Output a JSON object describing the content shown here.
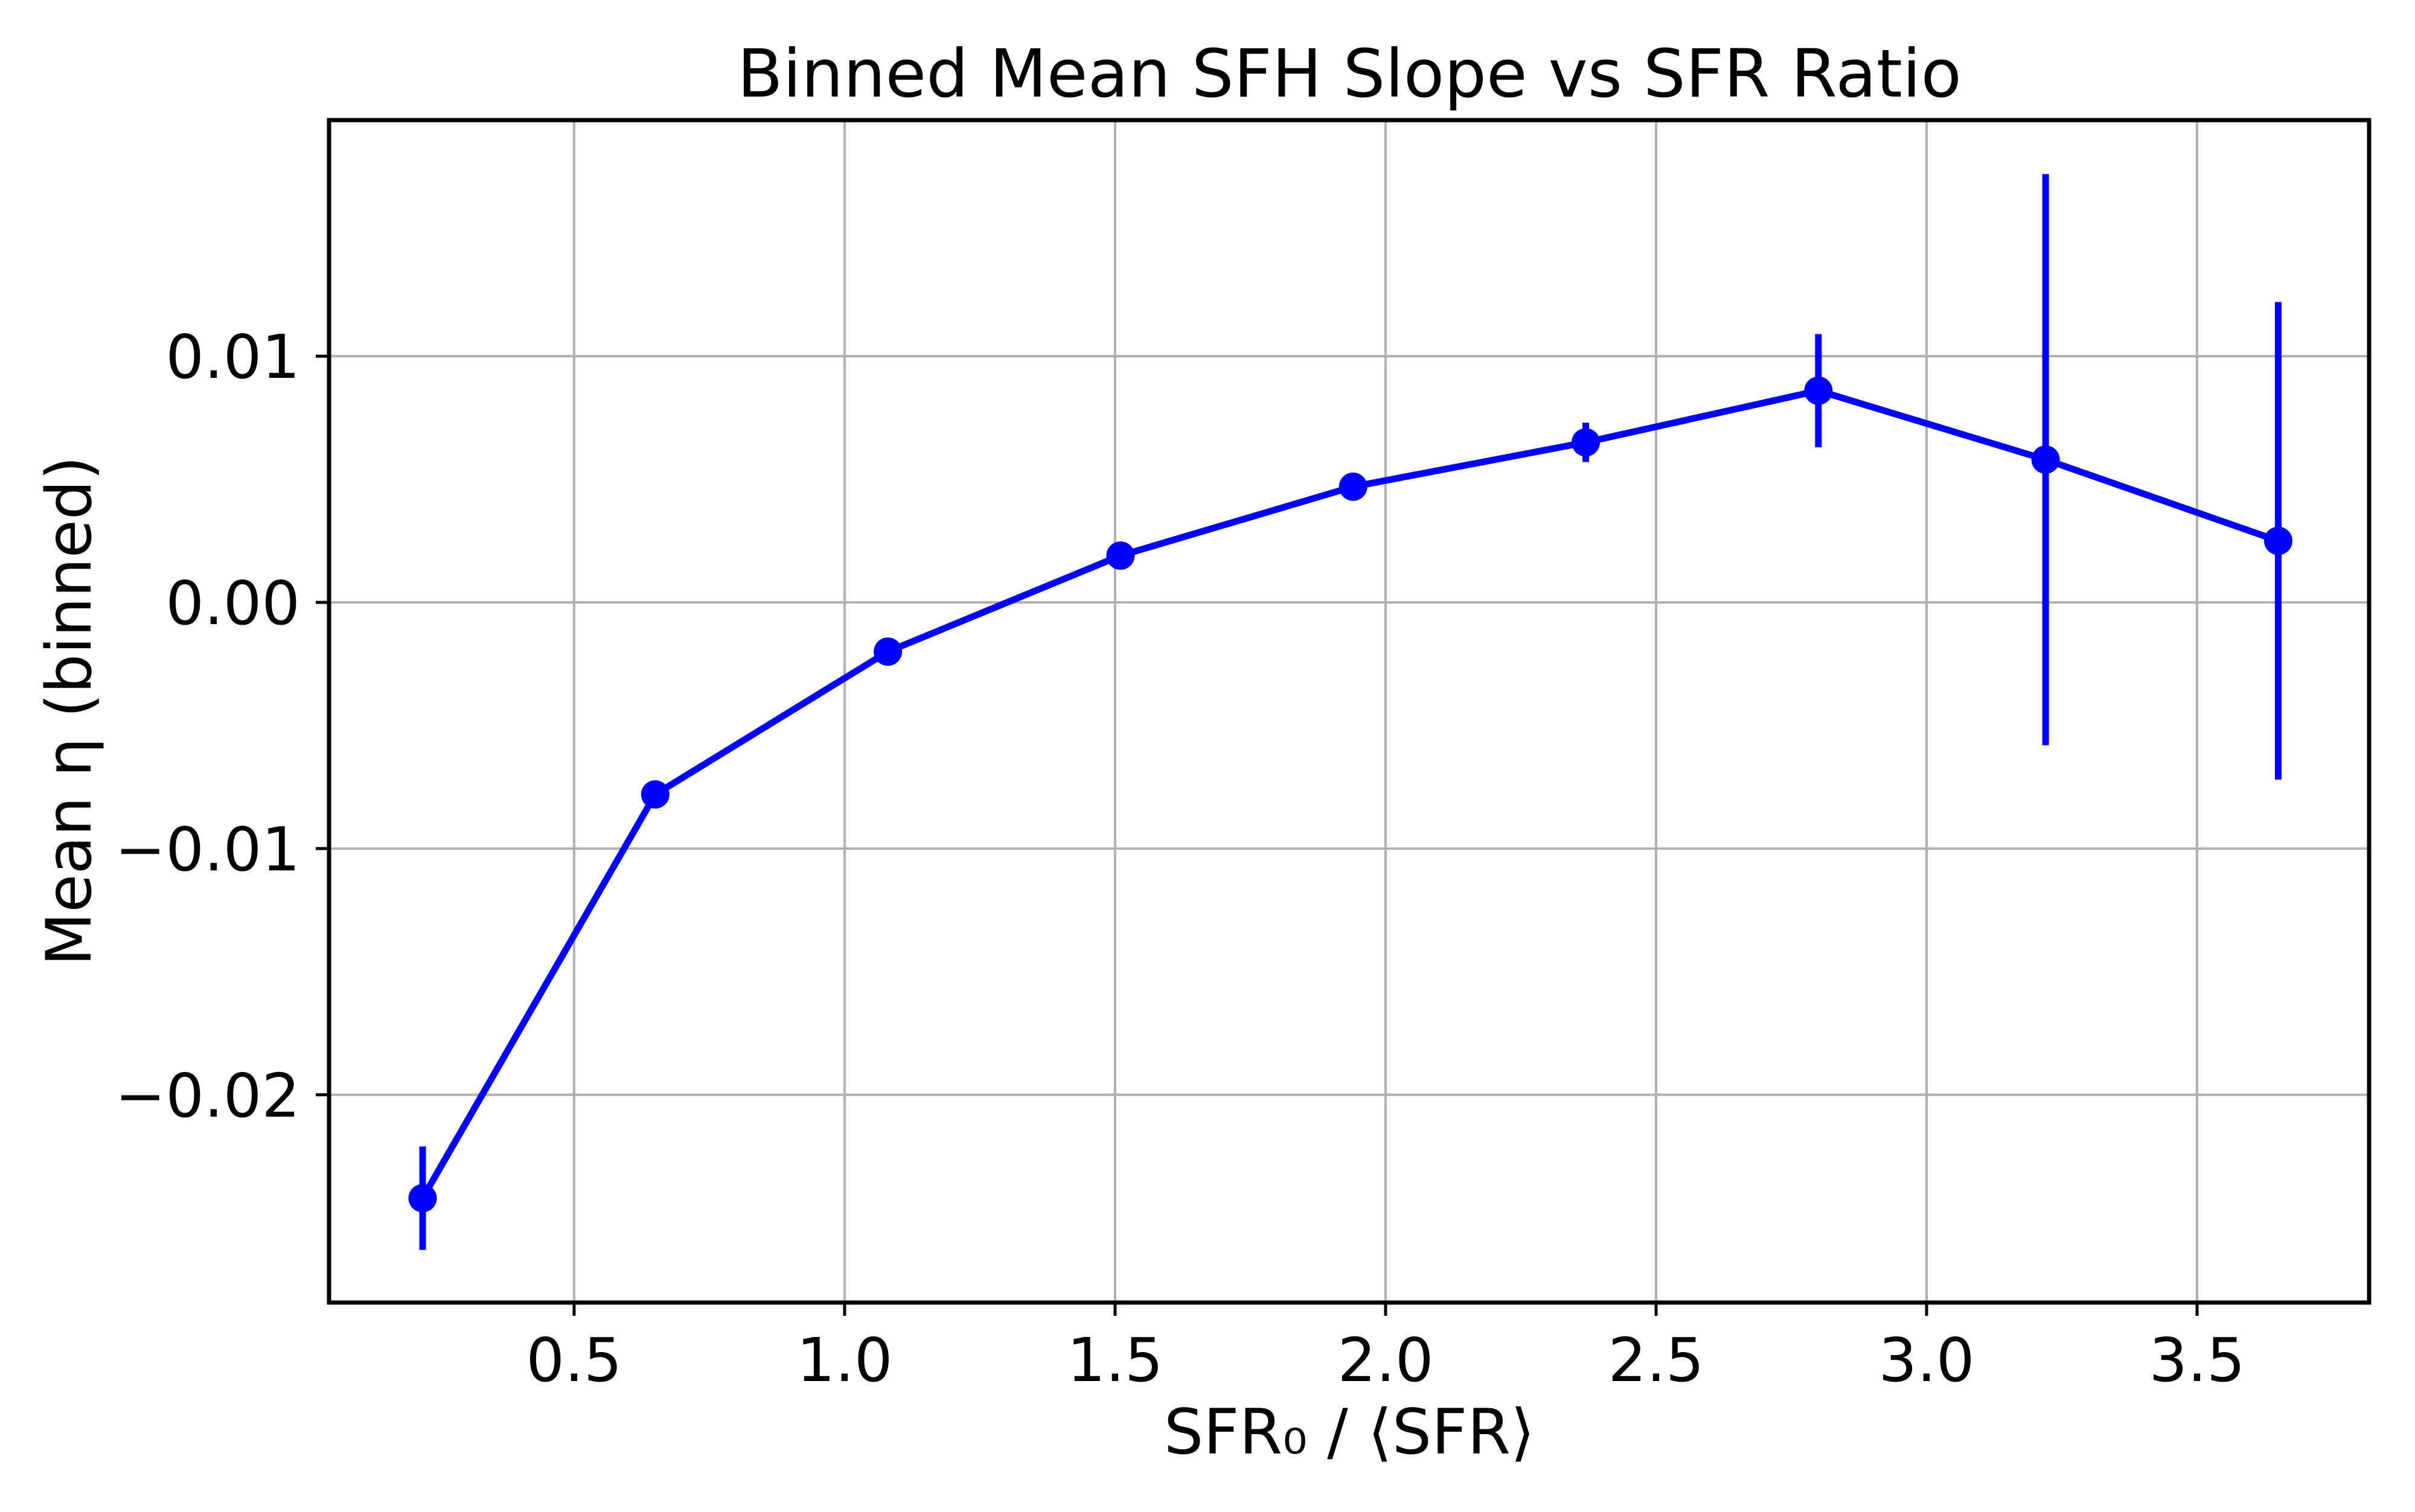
{
  "chart_data": {
    "type": "line",
    "title": "Binned Mean SFH Slope vs SFR Ratio",
    "xlabel": "SFR₀ / ⟨SFR⟩",
    "ylabel": "Mean η (binned)",
    "x": [
      0.22,
      0.65,
      1.08,
      1.51,
      1.94,
      2.37,
      2.8,
      3.22,
      3.65
    ],
    "y": [
      -0.0242,
      -0.0078,
      -0.002,
      0.0019,
      0.0047,
      0.0065,
      0.0086,
      0.0058,
      0.0025
    ],
    "yerr": [
      0.0021,
      0.0004,
      0.0003,
      0.0003,
      0.0004,
      0.0008,
      0.0023,
      0.0116,
      0.0097
    ],
    "xticks": {
      "values": [
        0.5,
        1.0,
        1.5,
        2.0,
        2.5,
        3.0,
        3.5
      ],
      "labels": [
        "0.5",
        "1.0",
        "1.5",
        "2.0",
        "2.5",
        "3.0",
        "3.5"
      ]
    },
    "yticks": {
      "values": [
        0.01,
        0.0,
        -0.01,
        -0.02
      ],
      "labels": [
        "0.01",
        "0.00",
        "−0.01",
        "−0.02"
      ]
    },
    "xlim": [
      0.047,
      3.818
    ],
    "ylim": [
      -0.02844,
      0.01959
    ],
    "grid": true,
    "legend": null,
    "line_color": "#0000ff",
    "grid_color": "#b0b0b0",
    "spine_color": "#000000",
    "background": "#ffffff",
    "marker": "circle"
  }
}
